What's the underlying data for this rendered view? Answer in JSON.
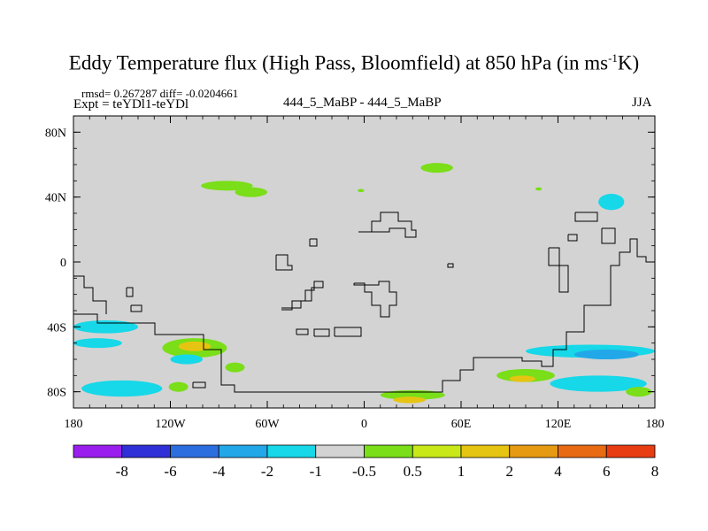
{
  "chart_data": {
    "type": "heatmap",
    "title_main": "Eddy Temperature flux (High Pass, Bloomfield) at 850 hPa (in ms",
    "title_sup": "-1",
    "title_end": "K)",
    "stats_text": "rmsd= 0.267287 diff= -0.0204661",
    "expt_text": "Expt = teYDl1-teYDl",
    "center_label": "444_5_MaBP - 444_5_MaBP",
    "season": "JJA",
    "xlim": [
      -180,
      180
    ],
    "ylim": [
      -90,
      90
    ],
    "x_ticks": [
      {
        "value": -180,
        "label": "180"
      },
      {
        "value": -120,
        "label": "120W"
      },
      {
        "value": -60,
        "label": "60W"
      },
      {
        "value": 0,
        "label": "0"
      },
      {
        "value": 60,
        "label": "60E"
      },
      {
        "value": 120,
        "label": "120E"
      },
      {
        "value": 180,
        "label": "180"
      }
    ],
    "y_ticks": [
      {
        "value": 80,
        "label": "80N"
      },
      {
        "value": 40,
        "label": "40N"
      },
      {
        "value": 0,
        "label": "0"
      },
      {
        "value": -40,
        "label": "40S"
      },
      {
        "value": -80,
        "label": "80S"
      }
    ],
    "background_color": "#d3d3d3",
    "colorbar": {
      "colors": [
        "#9a1eee",
        "#3030d8",
        "#2c6ee0",
        "#22a8e8",
        "#16d8e8",
        "#d3d3d3",
        "#7ade18",
        "#c8e818",
        "#e6c412",
        "#e69a12",
        "#e86a12",
        "#e83c12"
      ],
      "labels": [
        "-8",
        "-6",
        "-4",
        "-2",
        "-1",
        "-0.5",
        "0.5",
        "1",
        "2",
        "4",
        "6",
        "8"
      ]
    },
    "regions": [
      {
        "label": "+1 mid-lat Atlantic/Pacific band",
        "color": "#7ade18",
        "lon": -85,
        "lat": 47,
        "dlon": 16,
        "dlat": 3
      },
      {
        "label": "+1 N Pacific",
        "color": "#7ade18",
        "lon": -70,
        "lat": 43,
        "dlon": 10,
        "dlat": 3
      },
      {
        "label": "+1 N Atlantic",
        "color": "#7ade18",
        "lon": 45,
        "lat": 58,
        "dlon": 10,
        "dlat": 3
      },
      {
        "label": "+1 Asia small",
        "color": "#7ade18",
        "lon": -2,
        "lat": 44,
        "dlon": 2,
        "dlat": 1
      },
      {
        "label": "+1 Asia small 2",
        "color": "#7ade18",
        "lon": 108,
        "lat": 45,
        "dlon": 2,
        "dlat": 1
      },
      {
        "label": "-1 NE Pacific",
        "color": "#16d8e8",
        "lon": 153,
        "lat": 37,
        "dlon": 8,
        "dlat": 5
      },
      {
        "label": "-1 SH band west",
        "color": "#16d8e8",
        "lon": -160,
        "lat": -40,
        "dlon": 20,
        "dlat": 4
      },
      {
        "label": "-1 SH band west low",
        "color": "#16d8e8",
        "lon": -165,
        "lat": -50,
        "dlon": 15,
        "dlat": 3
      },
      {
        "label": "+1 S Pacific",
        "color": "#7ade18",
        "lon": -105,
        "lat": -53,
        "dlon": 20,
        "dlat": 6
      },
      {
        "label": "+2 S Pacific core",
        "color": "#e6c412",
        "lon": -105,
        "lat": -52,
        "dlon": 10,
        "dlat": 3
      },
      {
        "label": "-1 S Pacific west",
        "color": "#16d8e8",
        "lon": -110,
        "lat": -60,
        "dlon": 10,
        "dlat": 3
      },
      {
        "label": "+1 S Pacific south",
        "color": "#7ade18",
        "lon": -80,
        "lat": -65,
        "dlon": 6,
        "dlat": 3
      },
      {
        "label": "-1 Southern Ocean Indian",
        "color": "#16d8e8",
        "lon": 140,
        "lat": -55,
        "dlon": 40,
        "dlat": 4
      },
      {
        "label": "-2 Southern Ocean core",
        "color": "#22a8e8",
        "lon": 150,
        "lat": -57,
        "dlon": 20,
        "dlat": 3
      },
      {
        "label": "+1 Antarctic coast E",
        "color": "#7ade18",
        "lon": 100,
        "lat": -70,
        "dlon": 18,
        "dlat": 4
      },
      {
        "label": "+2 Antarctic coast E",
        "color": "#e6c412",
        "lon": 98,
        "lat": -72,
        "dlon": 8,
        "dlat": 2
      },
      {
        "label": "-1 Antarctic coast far E",
        "color": "#16d8e8",
        "lon": 145,
        "lat": -75,
        "dlon": 30,
        "dlat": 5
      },
      {
        "label": "+1 Antarctic coast central",
        "color": "#7ade18",
        "lon": 30,
        "lat": -82,
        "dlon": 20,
        "dlat": 3
      },
      {
        "label": "+2 Antarctic coast central",
        "color": "#e6c412",
        "lon": 28,
        "lat": -85,
        "dlon": 10,
        "dlat": 2
      },
      {
        "label": "-1 Antarctic coast west",
        "color": "#16d8e8",
        "lon": -150,
        "lat": -78,
        "dlon": 25,
        "dlat": 5
      },
      {
        "label": "+1 Antarctic west",
        "color": "#7ade18",
        "lon": -115,
        "lat": -77,
        "dlon": 6,
        "dlat": 3
      },
      {
        "label": "+1 Antarctic E2",
        "color": "#7ade18",
        "lon": 170,
        "lat": -80,
        "dlon": 8,
        "dlat": 3
      }
    ]
  }
}
